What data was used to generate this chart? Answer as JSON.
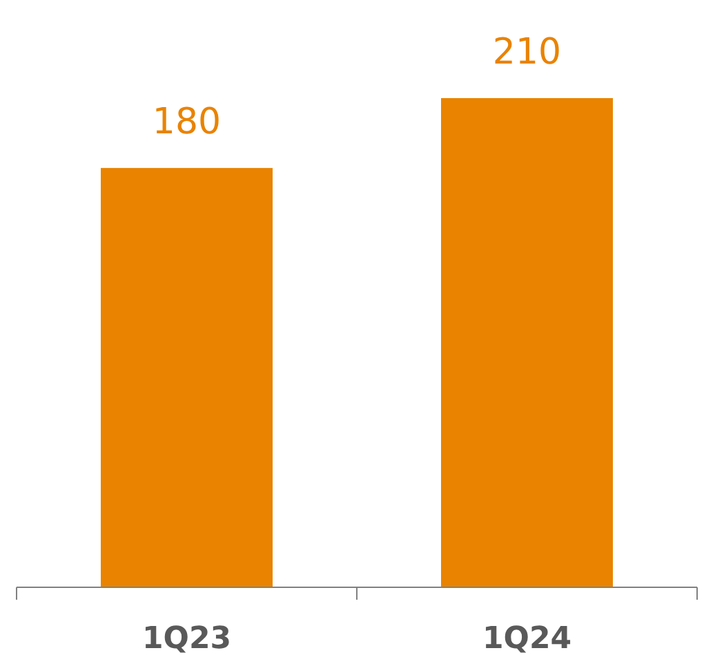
{
  "chart_data": {
    "type": "bar",
    "categories": [
      "1Q23",
      "1Q24"
    ],
    "values": [
      180,
      210
    ],
    "color": "#e98300",
    "data_labels": true
  }
}
